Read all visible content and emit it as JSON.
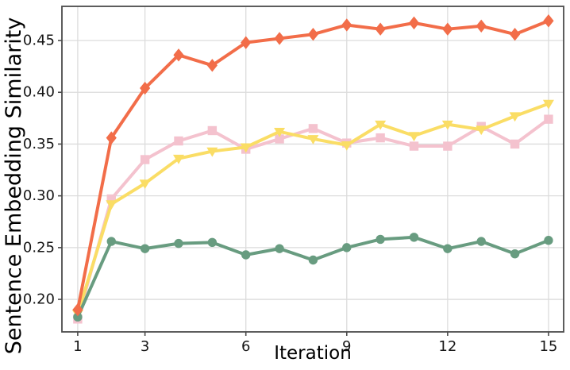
{
  "figure": {
    "background": "#ffffff",
    "grid_color": "#dcdcdc",
    "spine_color": "#4b4b4b",
    "tick_color": "#4b4b4b",
    "tick_label_color": "#161616"
  },
  "chart_data": {
    "type": "line",
    "title": "",
    "xlabel": "Iteration",
    "ylabel": "Sentence Embedding Similarity",
    "grid": true,
    "legend": false,
    "x": [
      1,
      2,
      3,
      4,
      5,
      6,
      7,
      8,
      9,
      10,
      11,
      12,
      13,
      14,
      15
    ],
    "x_ticks": [
      1,
      3,
      6,
      9,
      12,
      15
    ],
    "x_tick_labels": [
      "1",
      "3",
      "6",
      "9",
      "12",
      "15"
    ],
    "y_ticks": [
      0.2,
      0.25,
      0.3,
      0.35,
      0.4,
      0.45
    ],
    "y_tick_labels": [
      "0.20",
      "0.25",
      "0.30",
      "0.35",
      "0.40",
      "0.45"
    ],
    "xlim": [
      0.53,
      15.45
    ],
    "ylim": [
      0.1686,
      0.483
    ],
    "series": [
      {
        "name": "pink-square",
        "color": "#f4c2ce",
        "marker": "square",
        "values": [
          0.181,
          0.297,
          0.335,
          0.353,
          0.363,
          0.345,
          0.355,
          0.365,
          0.351,
          0.356,
          0.348,
          0.348,
          0.367,
          0.35,
          0.374
        ]
      },
      {
        "name": "yellow-triangle",
        "color": "#fadd65",
        "marker": "triangle-down",
        "values": [
          0.186,
          0.292,
          0.312,
          0.336,
          0.343,
          0.347,
          0.362,
          0.355,
          0.349,
          0.369,
          0.358,
          0.369,
          0.364,
          0.377,
          0.389
        ]
      },
      {
        "name": "green-circle",
        "color": "#689c80",
        "marker": "circle",
        "values": [
          0.183,
          0.256,
          0.249,
          0.254,
          0.255,
          0.243,
          0.249,
          0.238,
          0.25,
          0.258,
          0.26,
          0.249,
          0.256,
          0.244,
          0.257
        ]
      },
      {
        "name": "coral-diamond",
        "color": "#f26d49",
        "marker": "diamond",
        "values": [
          0.19,
          0.356,
          0.404,
          0.436,
          0.426,
          0.448,
          0.452,
          0.456,
          0.465,
          0.461,
          0.467,
          0.461,
          0.464,
          0.456,
          0.469
        ]
      }
    ]
  }
}
